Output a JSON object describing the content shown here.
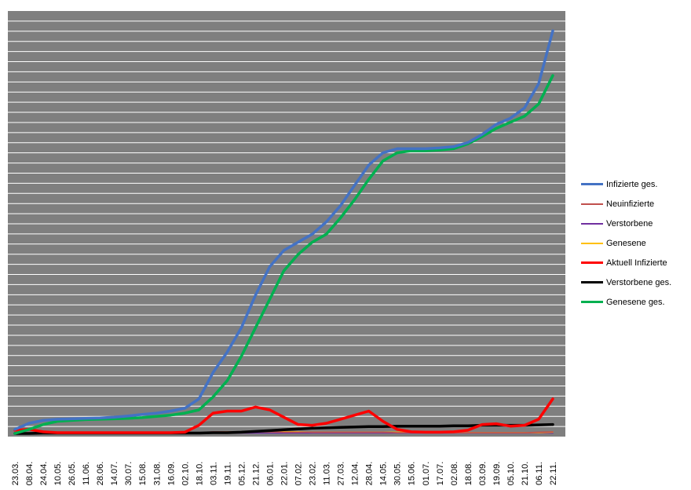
{
  "chart_data": {
    "type": "line",
    "title": "",
    "xlabel": "",
    "ylabel": "",
    "grid": true,
    "legend_position": "right",
    "x_ticks": [
      "23.03.",
      "08.04.",
      "24.04.",
      "10.05.",
      "26.05.",
      "11.06.",
      "28.06.",
      "14.07.",
      "30.07.",
      "15.08.",
      "31.08.",
      "16.09.",
      "02.10.",
      "18.10.",
      "03.11.",
      "19.11.",
      "05.12.",
      "21.12.",
      "06.01.",
      "22.01.",
      "07.02.",
      "23.02.",
      "11.03.",
      "27.03.",
      "12.04.",
      "28.04.",
      "14.05.",
      "30.05.",
      "15.06.",
      "01.07.",
      "17.07.",
      "02.08.",
      "18.08.",
      "03.09.",
      "19.09.",
      "05.10.",
      "21.10.",
      "06.11.",
      "22.11."
    ],
    "series": [
      {
        "name": "Infizierte ges.",
        "color": "#4472C4",
        "width": 3.5,
        "values": [
          0.01,
          0.025,
          0.032,
          0.035,
          0.036,
          0.037,
          0.038,
          0.04,
          0.043,
          0.047,
          0.05,
          0.055,
          0.062,
          0.085,
          0.15,
          0.2,
          0.26,
          0.34,
          0.41,
          0.45,
          0.47,
          0.49,
          0.52,
          0.56,
          0.61,
          0.66,
          0.69,
          0.7,
          0.7,
          0.7,
          0.702,
          0.705,
          0.715,
          0.735,
          0.76,
          0.775,
          0.8,
          0.86,
          0.99
        ]
      },
      {
        "name": "Neuinfizierte",
        "color": "#C0504D",
        "width": 1.5,
        "values": [
          0.002,
          0.002,
          0.001,
          0.001,
          0.001,
          0.001,
          0.001,
          0.001,
          0.001,
          0.001,
          0.001,
          0.001,
          0.001,
          0.002,
          0.004,
          0.004,
          0.004,
          0.004,
          0.004,
          0.003,
          0.003,
          0.003,
          0.003,
          0.003,
          0.003,
          0.003,
          0.003,
          0.002,
          0.002,
          0.002,
          0.002,
          0.002,
          0.002,
          0.002,
          0.002,
          0.002,
          0.002,
          0.003,
          0.004
        ]
      },
      {
        "name": "Verstorbene",
        "color": "#7030A0",
        "width": 1.5,
        "values": [
          0.001,
          0.001,
          0.001,
          0.001,
          0.001,
          0.001,
          0.001,
          0.001,
          0.001,
          0.001,
          0.001,
          0.001,
          0.001,
          0.001,
          0.001,
          0.001,
          0.001,
          0.001,
          0.001,
          0.001,
          0.001,
          0.001,
          0.001,
          0.001,
          0.001,
          0.001,
          0.001,
          0.001,
          0.001,
          0.001,
          0.001,
          0.001,
          0.001,
          0.001,
          0.001,
          0.001,
          0.001,
          0.001,
          0.001
        ]
      },
      {
        "name": "Genesene",
        "color": "#FFC000",
        "width": 1.5,
        "values": [
          0.0,
          0.001,
          0.001,
          0.001,
          0.001,
          0.001,
          0.001,
          0.001,
          0.001,
          0.001,
          0.001,
          0.001,
          0.001,
          0.002,
          0.003,
          0.004,
          0.004,
          0.004,
          0.004,
          0.004,
          0.004,
          0.003,
          0.003,
          0.003,
          0.003,
          0.003,
          0.003,
          0.003,
          0.003,
          0.002,
          0.002,
          0.002,
          0.002,
          0.002,
          0.002,
          0.002,
          0.002,
          0.002,
          0.003
        ]
      },
      {
        "name": "Aktuell Infizierte",
        "color": "#FF0000",
        "width": 3.5,
        "values": [
          0.008,
          0.01,
          0.004,
          0.002,
          0.002,
          0.002,
          0.002,
          0.002,
          0.002,
          0.002,
          0.002,
          0.002,
          0.003,
          0.02,
          0.05,
          0.055,
          0.055,
          0.065,
          0.058,
          0.04,
          0.022,
          0.02,
          0.025,
          0.035,
          0.045,
          0.055,
          0.03,
          0.01,
          0.004,
          0.003,
          0.003,
          0.004,
          0.008,
          0.022,
          0.024,
          0.018,
          0.02,
          0.035,
          0.085
        ]
      },
      {
        "name": "Verstorbene ges.",
        "color": "#000000",
        "width": 3.5,
        "values": [
          0.0,
          0.0,
          0.001,
          0.001,
          0.001,
          0.001,
          0.001,
          0.001,
          0.001,
          0.001,
          0.001,
          0.001,
          0.001,
          0.001,
          0.002,
          0.002,
          0.003,
          0.005,
          0.007,
          0.009,
          0.011,
          0.013,
          0.014,
          0.015,
          0.016,
          0.017,
          0.017,
          0.018,
          0.018,
          0.018,
          0.018,
          0.019,
          0.019,
          0.02,
          0.02,
          0.02,
          0.02,
          0.021,
          0.022
        ]
      },
      {
        "name": "Genesene ges.",
        "color": "#00B050",
        "width": 3.5,
        "values": [
          0.0,
          0.01,
          0.022,
          0.03,
          0.032,
          0.034,
          0.035,
          0.036,
          0.037,
          0.039,
          0.042,
          0.045,
          0.05,
          0.058,
          0.09,
          0.13,
          0.19,
          0.26,
          0.33,
          0.4,
          0.44,
          0.47,
          0.49,
          0.53,
          0.575,
          0.625,
          0.67,
          0.69,
          0.695,
          0.695,
          0.697,
          0.7,
          0.712,
          0.73,
          0.75,
          0.765,
          0.78,
          0.81,
          0.88
        ]
      }
    ]
  }
}
